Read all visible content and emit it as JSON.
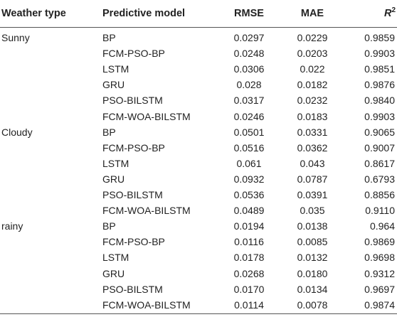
{
  "header": {
    "weather_type": "Weather type",
    "predictive_model": "Predictive model",
    "rmse": "RMSE",
    "mae": "MAE",
    "r2_letter": "R",
    "r2_exp": "2"
  },
  "rows": [
    {
      "weather": "Sunny",
      "model": "BP",
      "rmse": "0.0297",
      "mae": "0.0229",
      "r2": "0.9859"
    },
    {
      "weather": "",
      "model": "FCM-PSO-BP",
      "rmse": "0.0248",
      "mae": "0.0203",
      "r2": "0.9903"
    },
    {
      "weather": "",
      "model": "LSTM",
      "rmse": "0.0306",
      "mae": "0.022",
      "r2": "0.9851"
    },
    {
      "weather": "",
      "model": "GRU",
      "rmse": "0.028",
      "mae": "0.0182",
      "r2": "0.9876"
    },
    {
      "weather": "",
      "model": "PSO-BILSTM",
      "rmse": "0.0317",
      "mae": "0.0232",
      "r2": "0.9840"
    },
    {
      "weather": "",
      "model": "FCM-WOA-BILSTM",
      "rmse": "0.0246",
      "mae": "0.0183",
      "r2": "0.9903"
    },
    {
      "weather": "Cloudy",
      "model": "BP",
      "rmse": "0.0501",
      "mae": "0.0331",
      "r2": "0.9065"
    },
    {
      "weather": "",
      "model": "FCM-PSO-BP",
      "rmse": "0.0516",
      "mae": "0.0362",
      "r2": "0.9007"
    },
    {
      "weather": "",
      "model": "LSTM",
      "rmse": "0.061",
      "mae": "0.043",
      "r2": "0.8617"
    },
    {
      "weather": "",
      "model": "GRU",
      "rmse": "0.0932",
      "mae": "0.0787",
      "r2": "0.6793"
    },
    {
      "weather": "",
      "model": "PSO-BILSTM",
      "rmse": "0.0536",
      "mae": "0.0391",
      "r2": "0.8856"
    },
    {
      "weather": "",
      "model": "FCM-WOA-BILSTM",
      "rmse": "0.0489",
      "mae": "0.035",
      "r2": "0.9110"
    },
    {
      "weather": "rainy",
      "model": "BP",
      "rmse": "0.0194",
      "mae": "0.0138",
      "r2": "0.964"
    },
    {
      "weather": "",
      "model": "FCM-PSO-BP",
      "rmse": "0.0116",
      "mae": "0.0085",
      "r2": "0.9869"
    },
    {
      "weather": "",
      "model": "LSTM",
      "rmse": "0.0178",
      "mae": "0.0132",
      "r2": "0.9698"
    },
    {
      "weather": "",
      "model": "GRU",
      "rmse": "0.0268",
      "mae": "0.0180",
      "r2": "0.9312"
    },
    {
      "weather": "",
      "model": "PSO-BILSTM",
      "rmse": "0.0170",
      "mae": "0.0134",
      "r2": "0.9697"
    },
    {
      "weather": "",
      "model": "FCM-WOA-BILSTM",
      "rmse": "0.0114",
      "mae": "0.0078",
      "r2": "0.9874"
    }
  ]
}
